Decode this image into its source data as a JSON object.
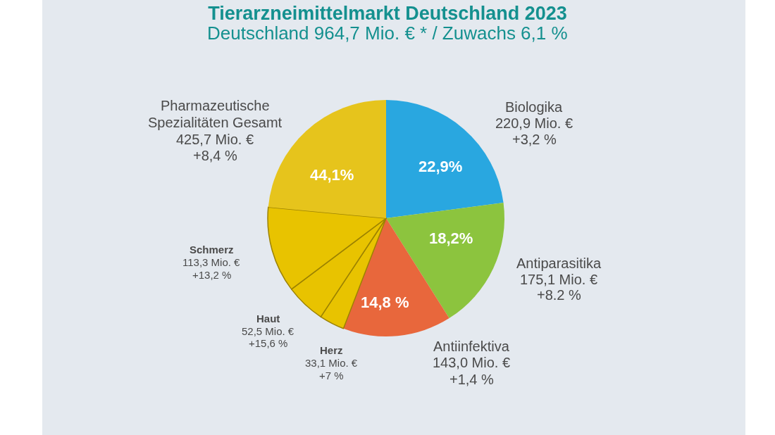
{
  "chart_data": {
    "type": "pie",
    "title": "Tierarzneimittelmarkt Deutschland 2023",
    "subtitle": "Deutschland 964,7 Mio. € * / Zuwachs 6,1 %",
    "categories": [
      "Biologika",
      "Antiparasitika",
      "Antiinfektiva",
      "Herz",
      "Haut",
      "Schmerz",
      null
    ],
    "values": [
      220.9,
      175.1,
      143.0,
      33.1,
      52.5,
      113.3,
      226.8
    ],
    "colors": [
      "#29a7e0",
      "#8cc43e",
      "#e8673c",
      "#e8c300",
      "#e8c300",
      "#e8c300",
      "#e6c41c"
    ],
    "value_labels": [
      "220,9 Mio. €",
      "175,1 Mio. €",
      "143,0 Mio. €",
      "33,1 Mio. €",
      "52,5 Mio. €",
      "113,3 Mio. €",
      null
    ],
    "annotations": [
      "Pharmazeutische",
      "Spezialitäten Gesamt",
      "425,7 Mio. €",
      "+8,4 %",
      "44,1%",
      "22,9%",
      "18,2%",
      "14,8 %",
      "+3,2 %",
      "+8.2 %",
      "+1,4 %",
      "+7 %",
      "+15,6 %",
      "+13,2 %"
    ]
  }
}
